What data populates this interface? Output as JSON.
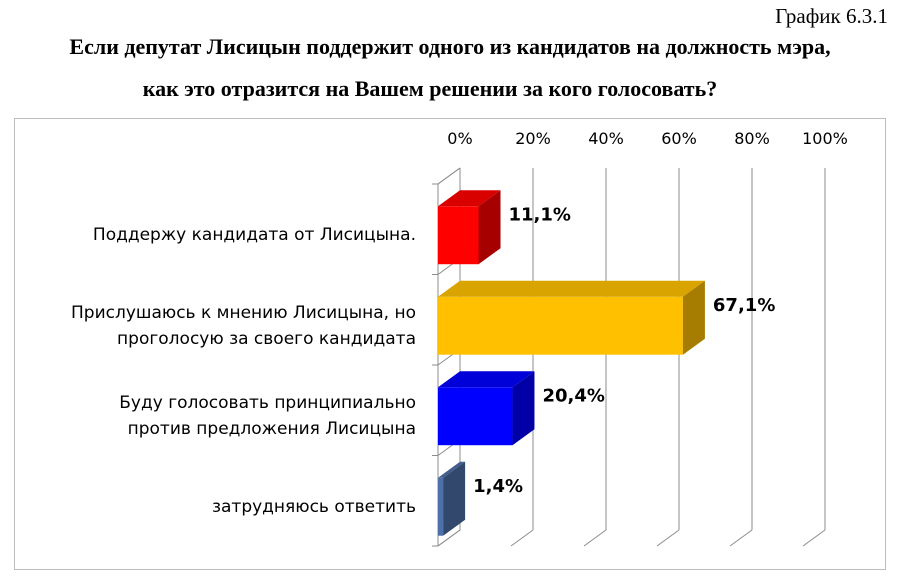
{
  "figure_number": "График 6.3.1",
  "title_line1": "Если депутат Лисицын поддержит одного из кандидатов на должность мэра,",
  "title_line2": "как это отразится на Вашем решении за кого голосовать?",
  "chart_data": {
    "type": "bar",
    "orientation": "horizontal",
    "style": "3d",
    "xlim": [
      0,
      100
    ],
    "x_ticks": [
      "0%",
      "20%",
      "40%",
      "60%",
      "80%",
      "100%"
    ],
    "grid": true,
    "categories": [
      "Поддержу кандидата от Лисицына.",
      "Прислушаюсь к мнению Лисицына, но проголосую за своего кандидата",
      "Буду голосовать принципиально против предложения Лисицына",
      "затрудняюсь ответить"
    ],
    "category_lines": [
      [
        "Поддержу кандидата от Лисицына."
      ],
      [
        "Прислушаюсь к мнению Лисицына, но",
        "проголосую за своего кандидата"
      ],
      [
        "Буду голосовать принципиально",
        "против предложения Лисицына"
      ],
      [
        "затрудняюсь ответить"
      ]
    ],
    "values": [
      11.1,
      67.1,
      20.4,
      1.4
    ],
    "value_labels": [
      "11,1%",
      "67,1%",
      "20,4%",
      "1,4%"
    ],
    "colors": [
      "#ff0000",
      "#ffc000",
      "#0000ff",
      "#4f6fa8"
    ]
  }
}
